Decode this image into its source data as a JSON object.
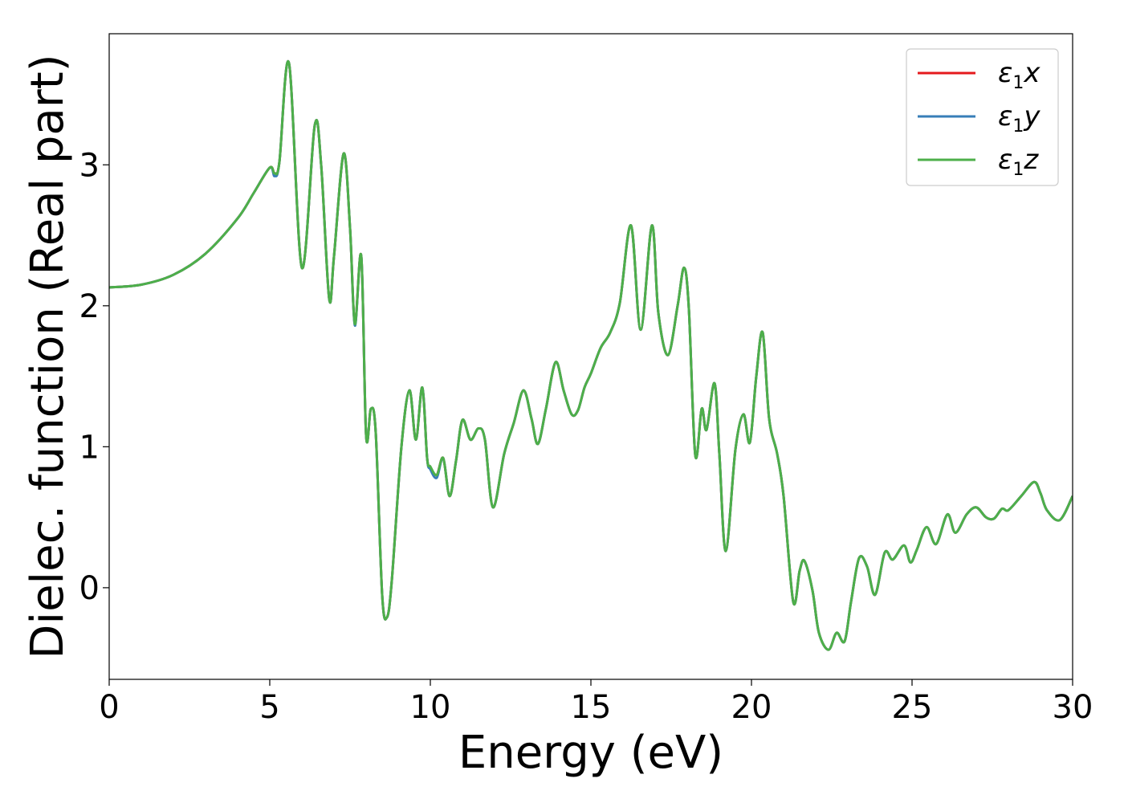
{
  "chart_data": {
    "type": "line",
    "xlabel": "Energy (eV)",
    "ylabel": "Dielec. function (Real part)",
    "xlim": [
      0,
      30
    ],
    "ylim": [
      -0.65,
      3.93
    ],
    "x_ticks": [
      0,
      5,
      10,
      15,
      20,
      25,
      30
    ],
    "y_ticks": [
      0,
      1,
      2,
      3
    ],
    "grid": false,
    "legend_position": "top-right",
    "colors": {
      "x": "#e41a1c",
      "y": "#377eb8",
      "z": "#4daf4a"
    },
    "x": [
      0,
      1,
      2,
      3,
      4,
      4.5,
      5.0,
      5.15,
      5.3,
      5.6,
      6.0,
      6.4,
      6.6,
      6.85,
      7.0,
      7.3,
      7.5,
      7.65,
      7.85,
      8.0,
      8.15,
      8.3,
      8.5,
      8.65,
      8.8,
      9.1,
      9.35,
      9.55,
      9.75,
      9.9,
      10.0,
      10.2,
      10.4,
      10.6,
      10.8,
      11.0,
      11.25,
      11.5,
      11.7,
      11.95,
      12.3,
      12.6,
      12.9,
      13.15,
      13.35,
      13.6,
      13.9,
      14.15,
      14.4,
      14.6,
      14.8,
      15.0,
      15.3,
      15.6,
      15.9,
      16.25,
      16.55,
      16.9,
      17.1,
      17.4,
      17.7,
      17.9,
      18.05,
      18.25,
      18.45,
      18.6,
      18.85,
      19.0,
      19.2,
      19.5,
      19.75,
      19.95,
      20.15,
      20.35,
      20.55,
      20.8,
      21.0,
      21.3,
      21.5,
      21.65,
      21.9,
      22.1,
      22.4,
      22.65,
      22.9,
      23.1,
      23.35,
      23.6,
      23.85,
      24.15,
      24.4,
      24.75,
      24.95,
      25.15,
      25.45,
      25.75,
      26.1,
      26.35,
      26.7,
      27.0,
      27.3,
      27.55,
      27.8,
      28.0,
      28.4,
      28.8,
      29.0,
      29.2,
      29.6,
      30.0
    ],
    "series": [
      {
        "name": "ε1x",
        "values": [
          2.13,
          2.15,
          2.22,
          2.37,
          2.62,
          2.8,
          2.98,
          2.94,
          3.02,
          3.72,
          2.27,
          3.28,
          3.0,
          2.05,
          2.35,
          3.08,
          2.55,
          1.87,
          2.35,
          1.08,
          1.27,
          1.1,
          -0.05,
          -0.21,
          0.05,
          1.0,
          1.4,
          1.05,
          1.42,
          0.92,
          0.85,
          0.8,
          0.92,
          0.65,
          0.9,
          1.19,
          1.05,
          1.13,
          1.05,
          0.57,
          0.95,
          1.17,
          1.4,
          1.2,
          1.02,
          1.27,
          1.6,
          1.4,
          1.23,
          1.26,
          1.42,
          1.52,
          1.7,
          1.81,
          2.02,
          2.57,
          1.83,
          2.57,
          1.95,
          1.65,
          2.0,
          2.27,
          1.98,
          0.94,
          1.27,
          1.12,
          1.45,
          0.95,
          0.26,
          0.98,
          1.23,
          1.03,
          1.5,
          1.81,
          1.2,
          0.95,
          0.65,
          -0.1,
          0.12,
          0.19,
          -0.02,
          -0.32,
          -0.44,
          -0.32,
          -0.38,
          -0.1,
          0.21,
          0.15,
          -0.05,
          0.25,
          0.2,
          0.3,
          0.18,
          0.27,
          0.43,
          0.31,
          0.52,
          0.39,
          0.52,
          0.57,
          0.5,
          0.49,
          0.56,
          0.55,
          0.65,
          0.75,
          0.67,
          0.55,
          0.48,
          0.65
        ]
      },
      {
        "name": "ε1y",
        "values": [
          2.13,
          2.15,
          2.22,
          2.37,
          2.62,
          2.8,
          2.98,
          2.92,
          3.02,
          3.72,
          2.27,
          3.28,
          3.0,
          2.05,
          2.35,
          3.08,
          2.55,
          1.86,
          2.35,
          1.08,
          1.27,
          1.1,
          -0.05,
          -0.21,
          0.05,
          1.0,
          1.4,
          1.05,
          1.42,
          0.92,
          0.84,
          0.78,
          0.92,
          0.65,
          0.9,
          1.19,
          1.05,
          1.13,
          1.05,
          0.57,
          0.95,
          1.17,
          1.4,
          1.2,
          1.02,
          1.27,
          1.6,
          1.4,
          1.23,
          1.26,
          1.42,
          1.52,
          1.7,
          1.81,
          2.02,
          2.57,
          1.83,
          2.57,
          1.95,
          1.65,
          2.0,
          2.27,
          1.98,
          0.94,
          1.27,
          1.12,
          1.45,
          0.95,
          0.26,
          0.98,
          1.23,
          1.03,
          1.5,
          1.81,
          1.2,
          0.95,
          0.65,
          -0.1,
          0.12,
          0.19,
          -0.02,
          -0.32,
          -0.44,
          -0.32,
          -0.38,
          -0.1,
          0.21,
          0.15,
          -0.05,
          0.25,
          0.2,
          0.3,
          0.18,
          0.27,
          0.43,
          0.31,
          0.52,
          0.39,
          0.52,
          0.57,
          0.5,
          0.49,
          0.56,
          0.55,
          0.65,
          0.75,
          0.67,
          0.55,
          0.48,
          0.65
        ]
      },
      {
        "name": "ε1z",
        "values": [
          2.13,
          2.15,
          2.22,
          2.37,
          2.62,
          2.8,
          2.98,
          2.94,
          3.02,
          3.72,
          2.27,
          3.28,
          3.0,
          2.05,
          2.35,
          3.08,
          2.55,
          1.87,
          2.35,
          1.08,
          1.27,
          1.1,
          -0.05,
          -0.21,
          0.05,
          1.0,
          1.4,
          1.05,
          1.42,
          0.92,
          0.86,
          0.8,
          0.92,
          0.65,
          0.9,
          1.19,
          1.05,
          1.13,
          1.05,
          0.57,
          0.95,
          1.17,
          1.4,
          1.2,
          1.02,
          1.27,
          1.6,
          1.4,
          1.23,
          1.26,
          1.42,
          1.52,
          1.7,
          1.81,
          2.02,
          2.57,
          1.83,
          2.57,
          1.95,
          1.65,
          2.0,
          2.27,
          1.98,
          0.94,
          1.27,
          1.12,
          1.45,
          0.95,
          0.26,
          0.98,
          1.23,
          1.03,
          1.5,
          1.81,
          1.2,
          0.95,
          0.65,
          -0.1,
          0.12,
          0.19,
          -0.02,
          -0.32,
          -0.44,
          -0.32,
          -0.38,
          -0.1,
          0.21,
          0.15,
          -0.05,
          0.25,
          0.2,
          0.3,
          0.18,
          0.27,
          0.43,
          0.31,
          0.52,
          0.39,
          0.52,
          0.57,
          0.5,
          0.49,
          0.56,
          0.55,
          0.65,
          0.75,
          0.67,
          0.55,
          0.48,
          0.65
        ]
      }
    ],
    "legend": [
      {
        "base": "ε",
        "sub": "1",
        "axis": "x"
      },
      {
        "base": "ε",
        "sub": "1",
        "axis": "y"
      },
      {
        "base": "ε",
        "sub": "1",
        "axis": "z"
      }
    ]
  }
}
